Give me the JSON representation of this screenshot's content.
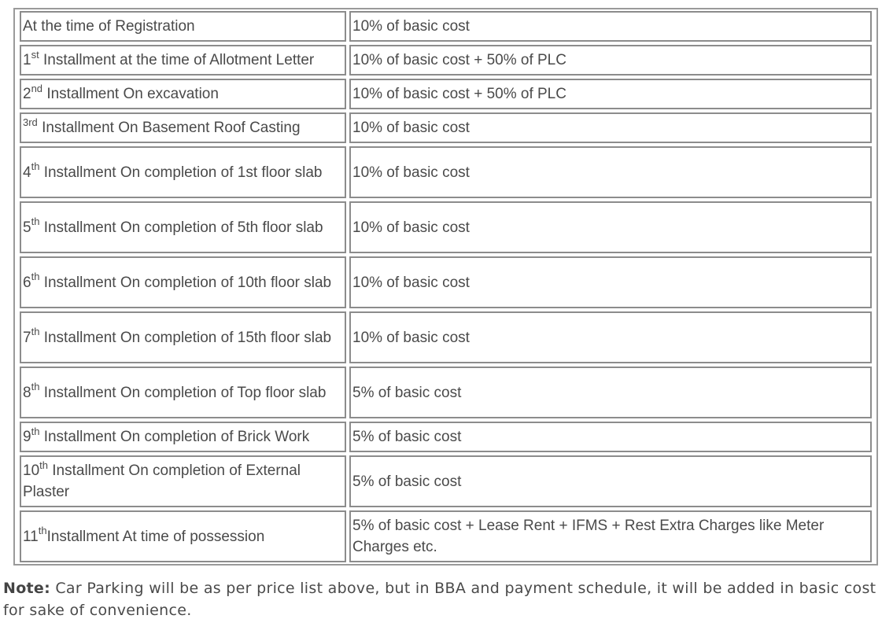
{
  "schedule": {
    "rows": [
      {
        "ordinal": "",
        "sup": "",
        "stage": "At the time of Registration",
        "amount": "10% of basic cost"
      },
      {
        "ordinal": "1",
        "sup": "st",
        "stage": " Installment at the time of Allotment Letter",
        "amount": "10% of basic cost + 50% of PLC"
      },
      {
        "ordinal": "2",
        "sup": "nd",
        "stage": " Installment On excavation",
        "amount": "10% of basic cost + 50% of PLC"
      },
      {
        "ordinal": "",
        "sup": "3rd",
        "stage": " Installment On Basement Roof Casting",
        "amount": "10% of basic cost"
      },
      {
        "ordinal": "4",
        "sup": "th",
        "stage": " Installment On completion of 1st floor slab",
        "amount": "10% of basic cost"
      },
      {
        "ordinal": "5",
        "sup": "th",
        "stage": " Installment On completion of 5th floor slab",
        "amount": "10% of basic cost"
      },
      {
        "ordinal": "6",
        "sup": "th",
        "stage": " Installment On completion of 10th floor slab",
        "amount": "10% of basic cost"
      },
      {
        "ordinal": "7",
        "sup": "th",
        "stage": " Installment On completion of 15th floor slab",
        "amount": "10% of basic cost"
      },
      {
        "ordinal": "8",
        "sup": "th",
        "stage": " Installment On completion of Top floor slab",
        "amount": "5% of basic cost"
      },
      {
        "ordinal": "9",
        "sup": "th",
        "stage": " Installment On completion of Brick Work",
        "amount": "5% of basic cost"
      },
      {
        "ordinal": "10",
        "sup": "th",
        "stage": " Installment On completion of External Plaster",
        "amount": "5% of basic cost"
      },
      {
        "ordinal": "11",
        "sup": "th",
        "stage": "Installment At time of possession",
        "amount": "5% of basic cost + Lease Rent + IFMS + Rest Extra Charges like Meter Charges etc."
      }
    ]
  },
  "note": {
    "label": "Note:",
    "text": " Car Parking will be as per price list above, but in BBA and payment schedule, it will be added in basic cost for sake of convenience."
  }
}
